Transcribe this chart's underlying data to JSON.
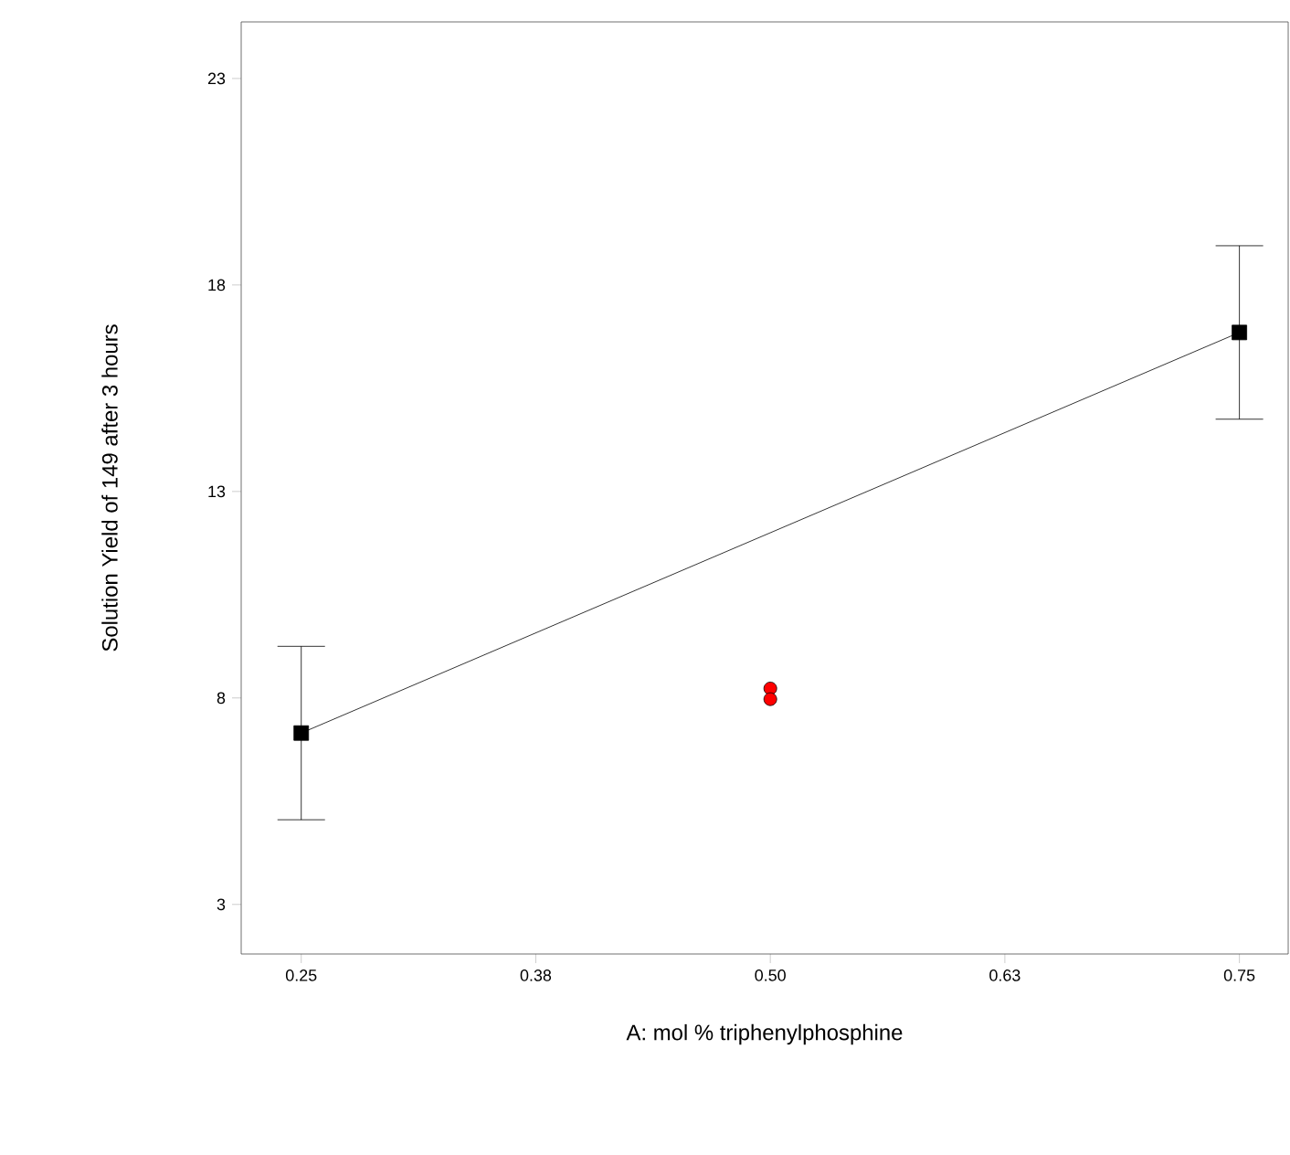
{
  "chart_data": {
    "type": "line",
    "xlabel": "A: mol % triphenylphosphine",
    "ylabel": "Solution Yield of 149 after 3 hours",
    "xlim": [
      0.218,
      0.776
    ],
    "ylim": [
      1.8,
      24.37
    ],
    "xticks": [
      0.25,
      {
        "value": 0.375,
        "label": "0.38"
      },
      {
        "value": 0.5,
        "label": "0.50"
      },
      {
        "value": 0.625,
        "label": "0.63"
      },
      0.75
    ],
    "yticks": [
      3,
      8,
      13,
      18,
      23
    ],
    "series": [
      {
        "color": "#000000",
        "x": [
          0.25,
          0.75
        ],
        "values": [
          7.15,
          16.85
        ],
        "errors": [
          2.1,
          2.1
        ],
        "marker": "square",
        "line_style": "solid"
      },
      {
        "type": "scatter",
        "color": "#ff0000",
        "x": [
          0.5,
          0.5
        ],
        "values": [
          8.23,
          7.97
        ],
        "marker": "circle"
      }
    ]
  }
}
